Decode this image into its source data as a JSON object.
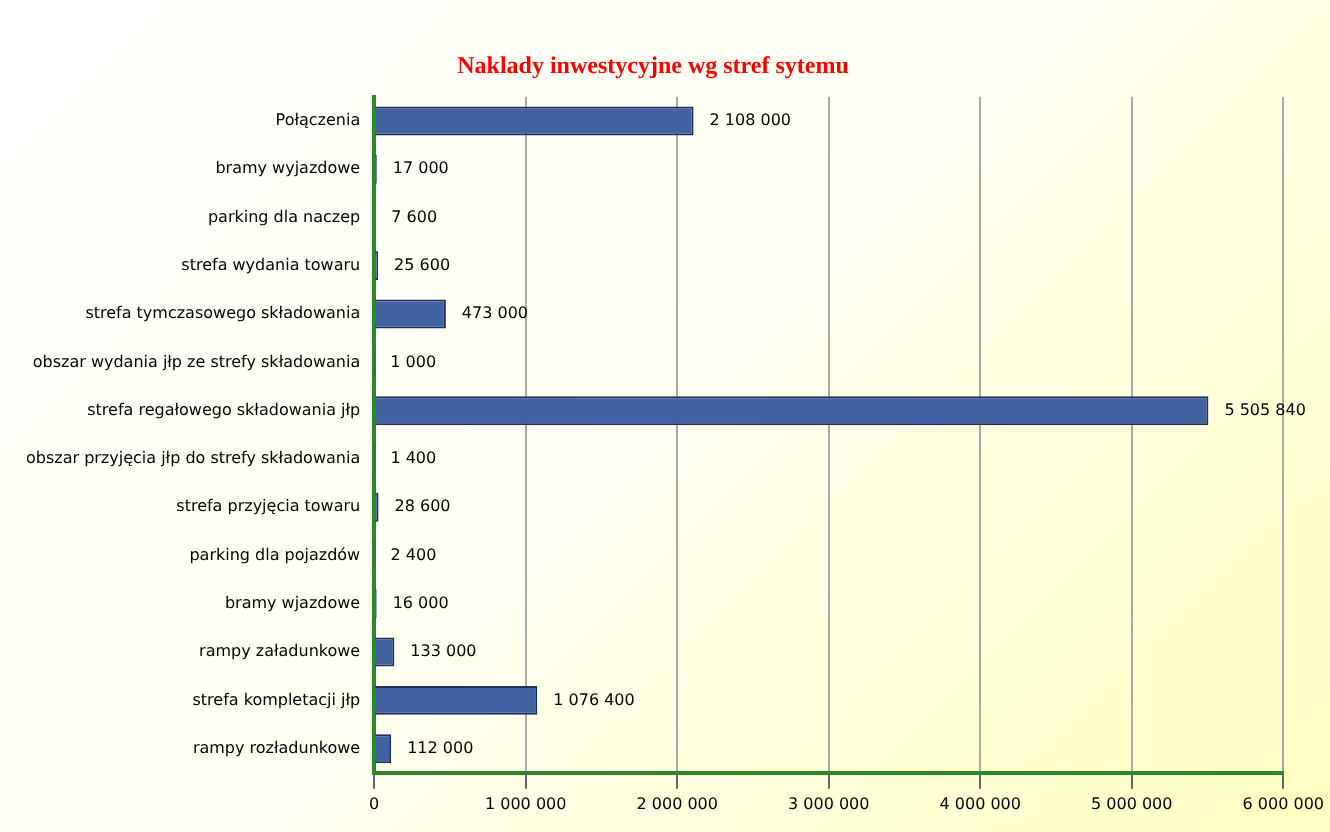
{
  "chart_data": {
    "type": "bar",
    "orientation": "horizontal",
    "title": "Naklady inwestycyjne wg stref sytemu",
    "categories": [
      "Połączenia",
      "bramy wyjazdowe",
      "parking dla naczep",
      "strefa wydania towaru",
      "strefa tymczasowego składowania",
      "obszar wydania jłp ze strefy składowania",
      "strefa regałowego składowania jłp",
      "obszar przyjęcia jłp do strefy składowania",
      "strefa przyjęcia towaru",
      "parking dla pojazdów",
      "bramy wjazdowe",
      "rampy załadunkowe",
      "strefa kompletacji jłp",
      "rampy rozładunkowe"
    ],
    "values": [
      2108000,
      17000,
      7600,
      25600,
      473000,
      1000,
      5505840,
      1400,
      28600,
      2400,
      16000,
      133000,
      1076400,
      112000
    ],
    "value_labels": [
      "2 108 000",
      "17 000",
      "7 600",
      "25 600",
      "473 000",
      "1 000",
      "5 505 840",
      "1 400",
      "28 600",
      "2 400",
      "16 000",
      "133 000",
      "1 076 400",
      "112 000"
    ],
    "color": "#4263a3",
    "xlim": [
      0,
      6000000
    ],
    "xticks": [
      {
        "value": 0,
        "label": "0"
      },
      {
        "value": 1000000,
        "label": "1 000 000"
      },
      {
        "value": 2000000,
        "label": "2 000 000"
      },
      {
        "value": 3000000,
        "label": "3 000 000"
      },
      {
        "value": 4000000,
        "label": "4 000 000"
      },
      {
        "value": 5000000,
        "label": "5 000 000"
      },
      {
        "value": 6000000,
        "label": "6 000 000"
      }
    ],
    "grid": "x",
    "legend": false
  }
}
